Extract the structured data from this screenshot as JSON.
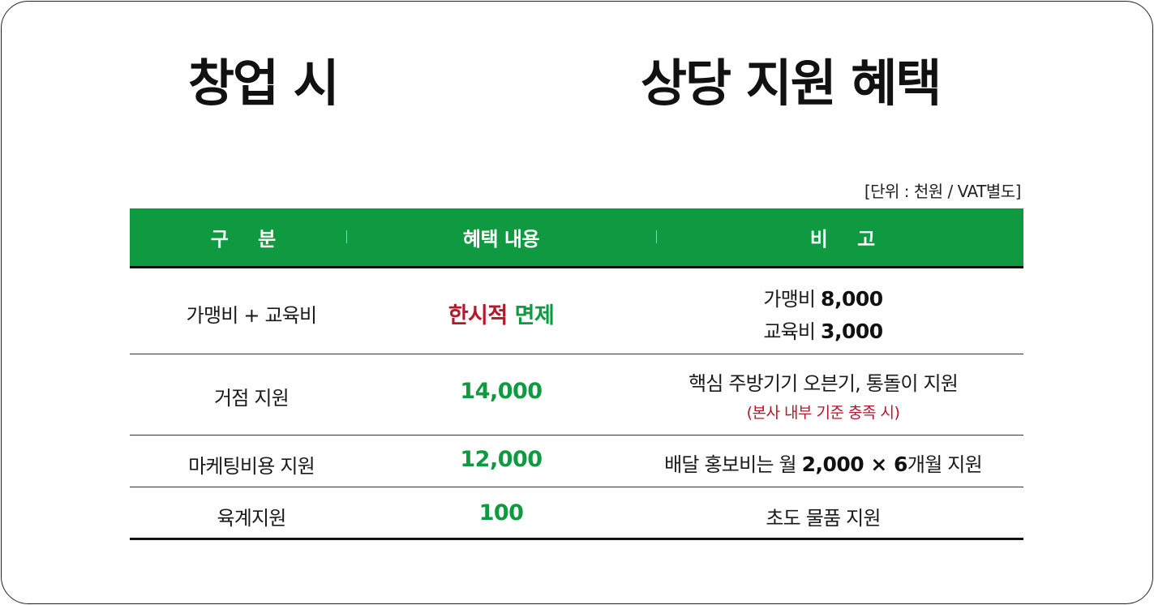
{
  "title": {
    "left": "창업 시",
    "right": "상당 지원 혜택"
  },
  "unit_note": "[단위 : 천원 / VAT별도]",
  "table": {
    "headers": [
      "구 분",
      "혜택 내용",
      "비 고"
    ],
    "rows": [
      {
        "category": "가맹비 + 교육비",
        "benefit_red": "한시적",
        "benefit_green": "면제",
        "note_line1_label": "가맹비",
        "note_line1_value": "8,000",
        "note_line2_label": "교육비",
        "note_line2_value": "3,000"
      },
      {
        "category": "거점 지원",
        "benefit": "14,000",
        "note": "핵심 주방기기 오븐기, 통돌이 지원",
        "note_sub": "(본사 내부 기준 충족 시)"
      },
      {
        "category": "마케팅비용 지원",
        "benefit": "12,000",
        "note_prefix": "배달 홍보비는 월",
        "note_bold": "2,000 × 6",
        "note_suffix": "개월 지원"
      },
      {
        "category": "육계지원",
        "benefit": "100",
        "note": "초도 물품 지원"
      }
    ]
  },
  "colors": {
    "header_green": "#0f9940",
    "accent_red": "#b5172b",
    "text_dark": "#111111"
  }
}
